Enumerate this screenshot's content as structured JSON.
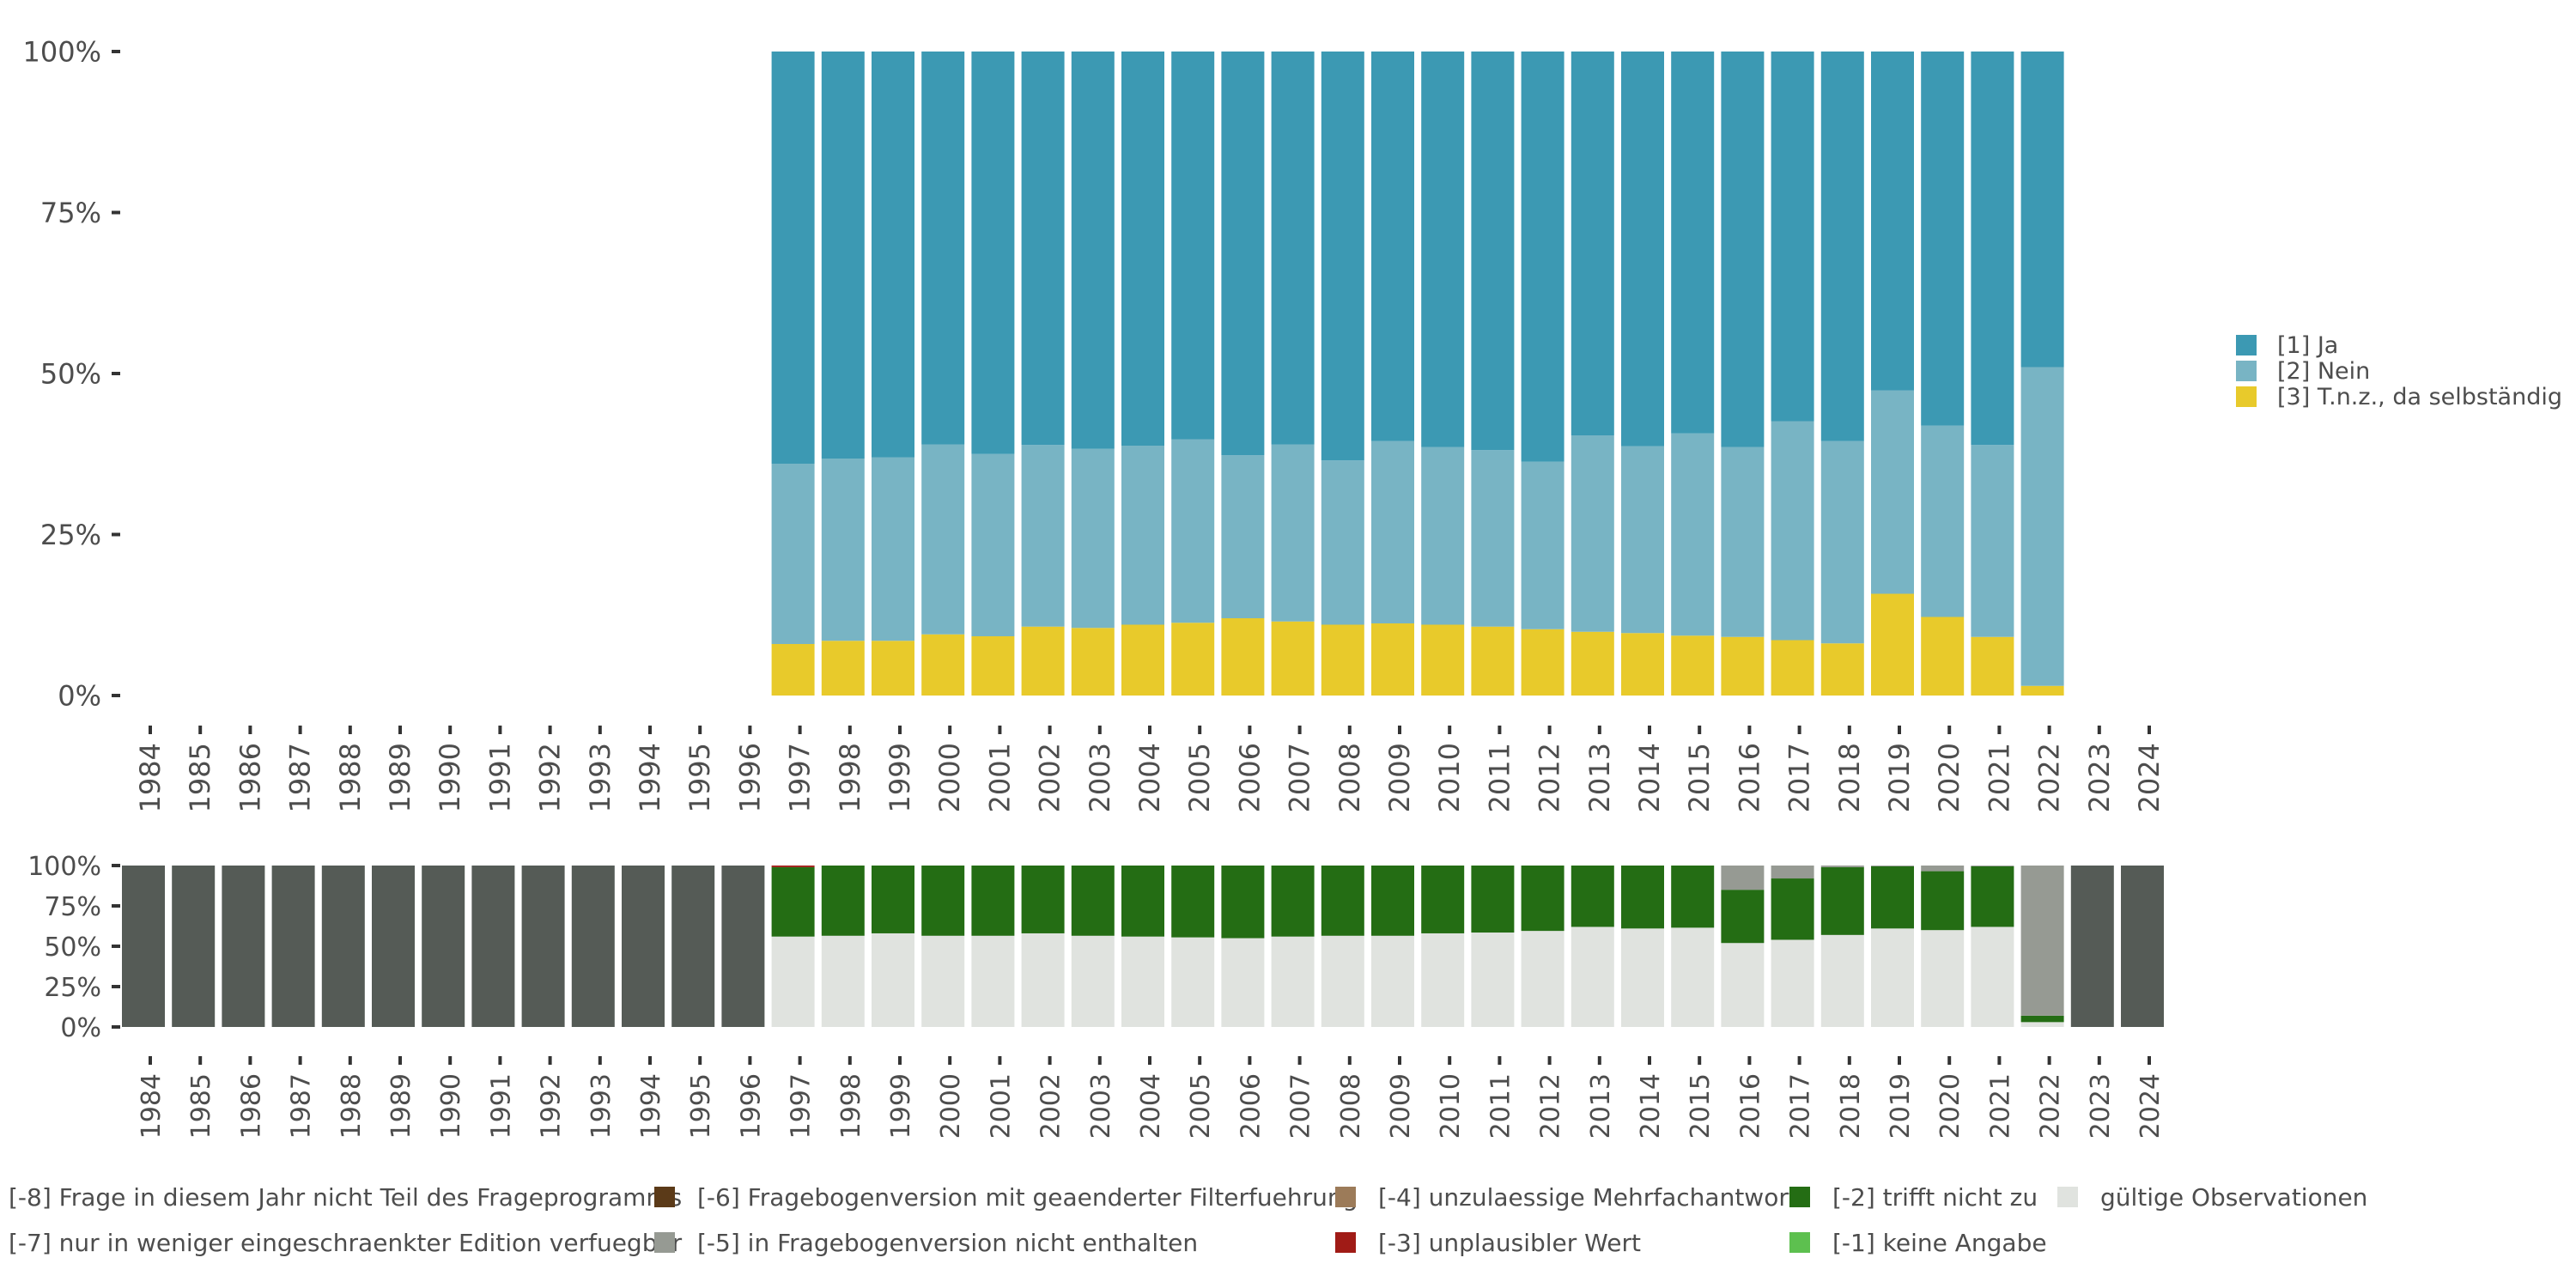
{
  "chart_data": [
    {
      "type": "bar",
      "stacked": true,
      "percent": true,
      "categories": [
        "1984",
        "1985",
        "1986",
        "1987",
        "1988",
        "1989",
        "1990",
        "1991",
        "1992",
        "1993",
        "1994",
        "1995",
        "1996",
        "1997",
        "1998",
        "1999",
        "2000",
        "2001",
        "2002",
        "2003",
        "2004",
        "2005",
        "2006",
        "2007",
        "2008",
        "2009",
        "2010",
        "2011",
        "2012",
        "2013",
        "2014",
        "2015",
        "2016",
        "2017",
        "2018",
        "2019",
        "2020",
        "2021",
        "2022",
        "2023",
        "2024"
      ],
      "y_ticks": [
        "0%",
        "25%",
        "50%",
        "75%",
        "100%"
      ],
      "ylim": [
        0,
        100
      ],
      "legend_position": "right",
      "series": [
        {
          "name": "[3] T.n.z., da selbständig",
          "color": "#e8ca2b",
          "values": [
            null,
            null,
            null,
            null,
            null,
            null,
            null,
            null,
            null,
            null,
            null,
            null,
            null,
            8,
            8.5,
            8.5,
            9.5,
            9.2,
            10.7,
            10.5,
            11,
            11.3,
            12,
            11.5,
            11,
            11.2,
            11,
            10.7,
            10.3,
            9.9,
            9.7,
            9.3,
            9.1,
            8.6,
            8.1,
            15.8,
            12.2,
            9.1,
            1.5,
            null,
            null
          ]
        },
        {
          "name": "[2] Nein",
          "color": "#78b4c4",
          "values": [
            null,
            null,
            null,
            null,
            null,
            null,
            null,
            null,
            null,
            null,
            null,
            null,
            null,
            28,
            28.3,
            28.5,
            29.5,
            28.3,
            28.2,
            27.8,
            27.8,
            28.5,
            25.3,
            27.5,
            25.5,
            28.3,
            27.6,
            27.4,
            26,
            30.5,
            29,
            31.4,
            29.5,
            34,
            31.4,
            31.6,
            29.7,
            29.8,
            49.5,
            null,
            null
          ]
        },
        {
          "name": "[1] Ja",
          "color": "#3c99b3",
          "values": [
            null,
            null,
            null,
            null,
            null,
            null,
            null,
            null,
            null,
            null,
            null,
            null,
            null,
            64,
            63.2,
            63,
            61,
            62.5,
            61.1,
            61.7,
            61.2,
            60.2,
            62.7,
            61,
            63.5,
            60.5,
            61.4,
            61.9,
            63.7,
            59.6,
            61.3,
            59.3,
            61.4,
            57.4,
            60.5,
            52.6,
            58.1,
            61.1,
            49,
            null,
            null
          ]
        }
      ]
    },
    {
      "type": "bar",
      "stacked": true,
      "percent": true,
      "categories": [
        "1984",
        "1985",
        "1986",
        "1987",
        "1988",
        "1989",
        "1990",
        "1991",
        "1992",
        "1993",
        "1994",
        "1995",
        "1996",
        "1997",
        "1998",
        "1999",
        "2000",
        "2001",
        "2002",
        "2003",
        "2004",
        "2005",
        "2006",
        "2007",
        "2008",
        "2009",
        "2010",
        "2011",
        "2012",
        "2013",
        "2014",
        "2015",
        "2016",
        "2017",
        "2018",
        "2019",
        "2020",
        "2021",
        "2022",
        "2023",
        "2024"
      ],
      "y_ticks": [
        "0%",
        "25%",
        "50%",
        "75%",
        "100%"
      ],
      "ylim": [
        0,
        100
      ],
      "legend_position": "bottom",
      "series": [
        {
          "name": "gültige Observationen",
          "color": "#e0e3df",
          "values": [
            0,
            0,
            0,
            0,
            0,
            0,
            0,
            0,
            0,
            0,
            0,
            0,
            0,
            56,
            56.5,
            58,
            56.5,
            56.5,
            58,
            56.5,
            56,
            55.5,
            55,
            56,
            56.5,
            56.5,
            58,
            58.5,
            59.5,
            62,
            61,
            61.5,
            52,
            54,
            57,
            61,
            60,
            62,
            3,
            0,
            0
          ]
        },
        {
          "name": "[-1] keine Angabe",
          "color": "#5dc04f",
          "values": [
            0,
            0,
            0,
            0,
            0,
            0,
            0,
            0,
            0,
            0,
            0,
            0,
            0,
            0,
            0,
            0,
            0,
            0,
            0,
            0,
            0,
            0,
            0,
            0,
            0,
            0,
            0,
            0,
            0,
            0,
            0,
            0,
            0,
            0,
            0,
            0,
            0,
            0,
            0,
            0,
            0
          ]
        },
        {
          "name": "[-2] trifft nicht zu",
          "color": "#246d14",
          "values": [
            0,
            0,
            0,
            0,
            0,
            0,
            0,
            0,
            0,
            0,
            0,
            0,
            0,
            43,
            43.5,
            42,
            43.5,
            43.5,
            42,
            43.5,
            44,
            44.5,
            45,
            44,
            43.5,
            43.5,
            42,
            41.5,
            40.5,
            38,
            39,
            38.5,
            33,
            38,
            42,
            38.5,
            36.5,
            37.5,
            4,
            0,
            0
          ]
        },
        {
          "name": "[-3] unplausibler Wert",
          "color": "#a01b16",
          "values": [
            0,
            0,
            0,
            0,
            0,
            0,
            0,
            0,
            0,
            0,
            0,
            0,
            0,
            1,
            0,
            0,
            0,
            0,
            0,
            0,
            0,
            0,
            0,
            0,
            0,
            0,
            0,
            0,
            0,
            0,
            0,
            0,
            0,
            0,
            0,
            0,
            0,
            0,
            0,
            0,
            0
          ]
        },
        {
          "name": "[-4] unzulaessige Mehrfachantwort",
          "color": "#9c7b59",
          "values": [
            0,
            0,
            0,
            0,
            0,
            0,
            0,
            0,
            0,
            0,
            0,
            0,
            0,
            0,
            0,
            0,
            0,
            0,
            0,
            0,
            0,
            0,
            0,
            0,
            0,
            0,
            0,
            0,
            0,
            0,
            0,
            0,
            0,
            0,
            0,
            0,
            0,
            0,
            0,
            0,
            0
          ]
        },
        {
          "name": "[-5] in Fragebogenversion nicht enthalten",
          "color": "#969a93",
          "values": [
            0,
            0,
            0,
            0,
            0,
            0,
            0,
            0,
            0,
            0,
            0,
            0,
            0,
            0,
            0,
            0,
            0,
            0,
            0,
            0,
            0,
            0,
            0,
            0,
            0,
            0,
            0,
            0,
            0,
            0,
            0,
            0,
            15,
            8,
            1,
            0.5,
            3.5,
            0.5,
            93,
            0,
            0
          ]
        },
        {
          "name": "[-6] Fragebogenversion mit geaenderter Filterfuehrung",
          "color": "#5b3a18",
          "values": [
            0,
            0,
            0,
            0,
            0,
            0,
            0,
            0,
            0,
            0,
            0,
            0,
            0,
            0,
            0,
            0,
            0,
            0,
            0,
            0,
            0,
            0,
            0,
            0,
            0,
            0,
            0,
            0,
            0,
            0,
            0,
            0,
            0,
            0,
            0,
            0,
            0,
            0,
            0,
            0,
            0
          ]
        },
        {
          "name": "[-7] nur in weniger eingeschraenkter Edition verfuegbar",
          "color": "#a5a8a3",
          "values": [
            0,
            0,
            0,
            0,
            0,
            0,
            0,
            0,
            0,
            0,
            0,
            0,
            0,
            0,
            0,
            0,
            0,
            0,
            0,
            0,
            0,
            0,
            0,
            0,
            0,
            0,
            0,
            0,
            0,
            0,
            0,
            0,
            0,
            0,
            0,
            0,
            0,
            0,
            0,
            0,
            0
          ]
        },
        {
          "name": "[-8] Frage in diesem Jahr nicht Teil des Frageprogramms",
          "color": "#555b56",
          "values": [
            100,
            100,
            100,
            100,
            100,
            100,
            100,
            100,
            100,
            100,
            100,
            100,
            100,
            0,
            0,
            0,
            0,
            0,
            0,
            0,
            0,
            0,
            0,
            0,
            0,
            0,
            0,
            0,
            0,
            0,
            0,
            0,
            0,
            0,
            0,
            0,
            0,
            0,
            0,
            100,
            100
          ]
        }
      ],
      "legend_order": [
        "[-8] Frage in diesem Jahr nicht Teil des Frageprogramms",
        "[-7] nur in weniger eingeschraenkter Edition verfuegbar",
        "[-6] Fragebogenversion mit geaenderter Filterfuehrung",
        "[-5] in Fragebogenversion nicht enthalten",
        "[-4] unzulaessige Mehrfachantwort",
        "[-3] unplausibler Wert",
        "[-2] trifft nicht zu",
        "[-1] keine Angabe",
        "gültige Observationen"
      ]
    }
  ]
}
